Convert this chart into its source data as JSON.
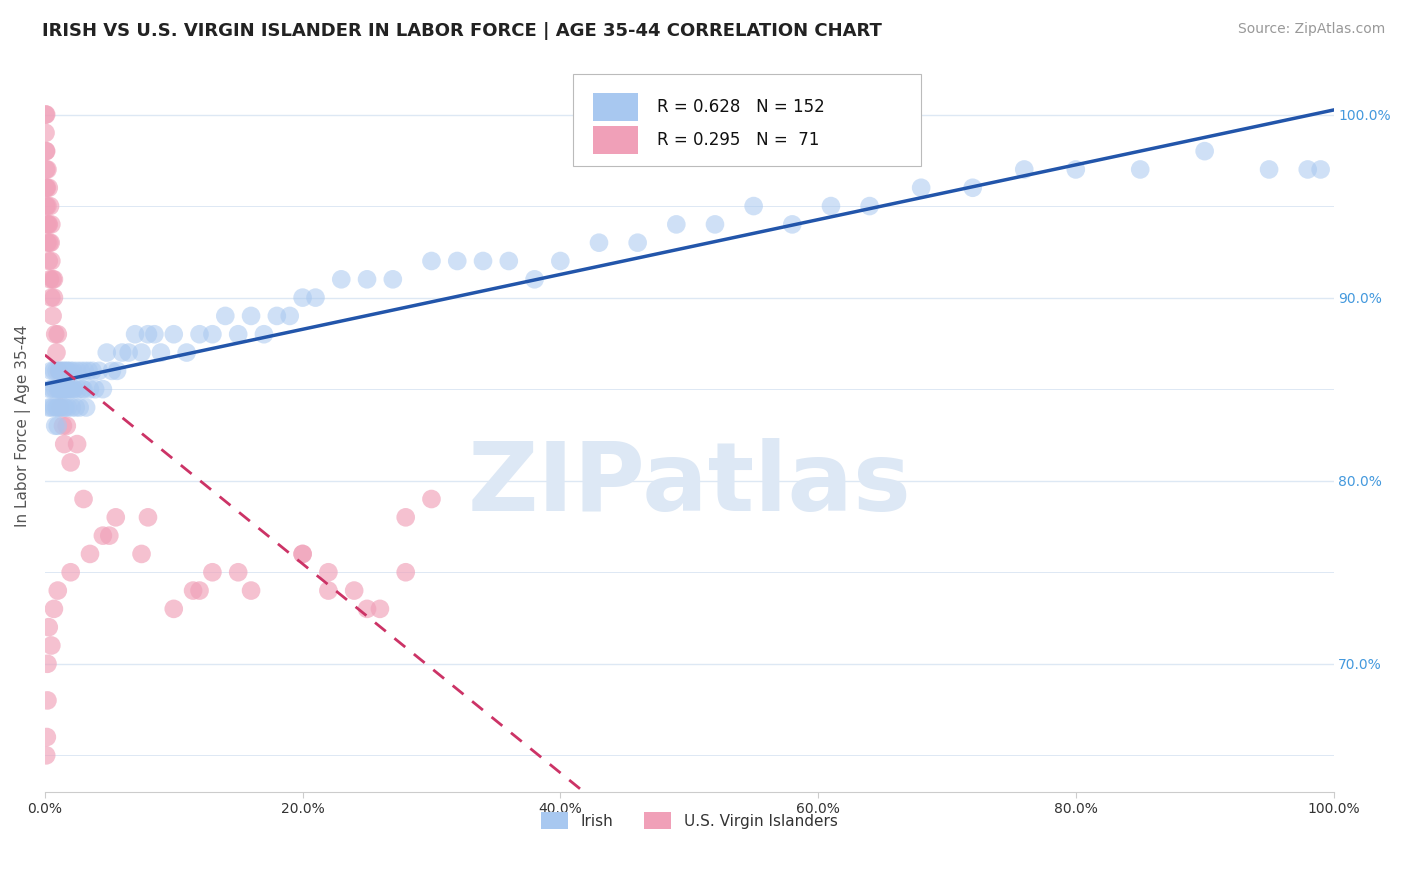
{
  "title": "IRISH VS U.S. VIRGIN ISLANDER IN LABOR FORCE | AGE 35-44 CORRELATION CHART",
  "source": "Source: ZipAtlas.com",
  "ylabel": "In Labor Force | Age 35-44",
  "x_tick_labels": [
    "0.0%",
    "20.0%",
    "40.0%",
    "60.0%",
    "80.0%",
    "100.0%"
  ],
  "x_tick_values": [
    0.0,
    20.0,
    40.0,
    60.0,
    80.0,
    100.0
  ],
  "y_tick_labels": [
    "70.0%",
    "80.0%",
    "90.0%",
    "100.0%"
  ],
  "y_tick_values": [
    70.0,
    80.0,
    90.0,
    100.0
  ],
  "xlim": [
    0.0,
    100.0
  ],
  "ylim": [
    63.0,
    103.0
  ],
  "legend_irish_R": "0.628",
  "legend_irish_N": "152",
  "legend_vi_R": "0.295",
  "legend_vi_N": " 71",
  "irish_color": "#a8c8f0",
  "vi_color": "#f0a0b8",
  "irish_line_color": "#2255aa",
  "vi_line_color": "#cc3366",
  "vi_line_dash": [
    5,
    4
  ],
  "watermark": "ZIPatlas",
  "watermark_color": "#dde8f5",
  "background_color": "#ffffff",
  "grid_color": "#dde8f4",
  "title_color": "#222222",
  "axis_label_color": "#555555",
  "tick_color_right": "#4499dd",
  "tick_color_bottom": "#333333",
  "irish_scatter_x": [
    0.3,
    0.4,
    0.5,
    0.5,
    0.6,
    0.7,
    0.7,
    0.8,
    0.8,
    0.9,
    0.9,
    1.0,
    1.0,
    1.0,
    1.1,
    1.1,
    1.1,
    1.2,
    1.2,
    1.3,
    1.3,
    1.4,
    1.4,
    1.5,
    1.5,
    1.5,
    1.6,
    1.6,
    1.7,
    1.7,
    1.8,
    1.8,
    1.9,
    2.0,
    2.0,
    2.1,
    2.2,
    2.2,
    2.3,
    2.4,
    2.5,
    2.6,
    2.7,
    2.8,
    2.9,
    3.0,
    3.1,
    3.2,
    3.4,
    3.5,
    3.7,
    3.9,
    4.2,
    4.5,
    4.8,
    5.2,
    5.6,
    6.0,
    6.5,
    7.0,
    7.5,
    8.0,
    8.5,
    9.0,
    10.0,
    11.0,
    12.0,
    13.0,
    14.0,
    15.0,
    16.0,
    17.0,
    18.0,
    19.0,
    20.0,
    21.0,
    23.0,
    25.0,
    27.0,
    30.0,
    32.0,
    34.0,
    36.0,
    38.0,
    40.0,
    43.0,
    46.0,
    49.0,
    52.0,
    55.0,
    58.0,
    61.0,
    64.0,
    68.0,
    72.0,
    76.0,
    80.0,
    85.0,
    90.0,
    95.0,
    98.0,
    99.0
  ],
  "irish_scatter_y": [
    84,
    85,
    86,
    84,
    85,
    84,
    86,
    85,
    83,
    86,
    84,
    85,
    84,
    83,
    86,
    85,
    84,
    86,
    85,
    85,
    84,
    86,
    85,
    86,
    85,
    84,
    85,
    84,
    86,
    85,
    84,
    86,
    85,
    86,
    85,
    84,
    85,
    86,
    85,
    84,
    86,
    85,
    84,
    86,
    85,
    85,
    86,
    84,
    86,
    85,
    86,
    85,
    86,
    85,
    87,
    86,
    86,
    87,
    87,
    88,
    87,
    88,
    88,
    87,
    88,
    87,
    88,
    88,
    89,
    88,
    89,
    88,
    89,
    89,
    90,
    90,
    91,
    91,
    91,
    92,
    92,
    92,
    92,
    91,
    92,
    93,
    93,
    94,
    94,
    95,
    94,
    95,
    95,
    96,
    96,
    97,
    97,
    97,
    98,
    97,
    97,
    97
  ],
  "vi_scatter_x": [
    0.05,
    0.05,
    0.07,
    0.1,
    0.1,
    0.1,
    0.1,
    0.1,
    0.15,
    0.15,
    0.2,
    0.2,
    0.2,
    0.25,
    0.3,
    0.3,
    0.3,
    0.35,
    0.4,
    0.4,
    0.45,
    0.5,
    0.5,
    0.5,
    0.6,
    0.6,
    0.7,
    0.7,
    0.8,
    0.9,
    1.0,
    1.1,
    1.2,
    1.4,
    1.5,
    1.7,
    2.0,
    2.5,
    3.0,
    4.5,
    5.5,
    7.5,
    10.0,
    11.5,
    13.0,
    16.0,
    20.0,
    22.0,
    24.0,
    26.0,
    28.0,
    30.0
  ],
  "vi_scatter_y": [
    100,
    99,
    98,
    100,
    98,
    96,
    95,
    97,
    96,
    94,
    97,
    95,
    93,
    94,
    96,
    94,
    92,
    93,
    95,
    91,
    93,
    94,
    92,
    90,
    91,
    89,
    91,
    90,
    88,
    87,
    88,
    86,
    84,
    83,
    82,
    83,
    81,
    82,
    79,
    77,
    78,
    76,
    73,
    74,
    75,
    74,
    76,
    75,
    74,
    73,
    78,
    79
  ],
  "vi_scatter_x2": [
    0.1,
    0.15,
    0.2,
    0.2,
    0.3,
    0.5,
    0.7,
    1.0,
    2.0,
    3.5,
    5.0,
    8.0,
    12.0,
    15.0,
    20.0,
    22.0,
    25.0,
    28.0
  ],
  "vi_scatter_y2": [
    65,
    66,
    68,
    70,
    72,
    71,
    73,
    74,
    75,
    76,
    77,
    78,
    74,
    75,
    76,
    74,
    73,
    75
  ]
}
